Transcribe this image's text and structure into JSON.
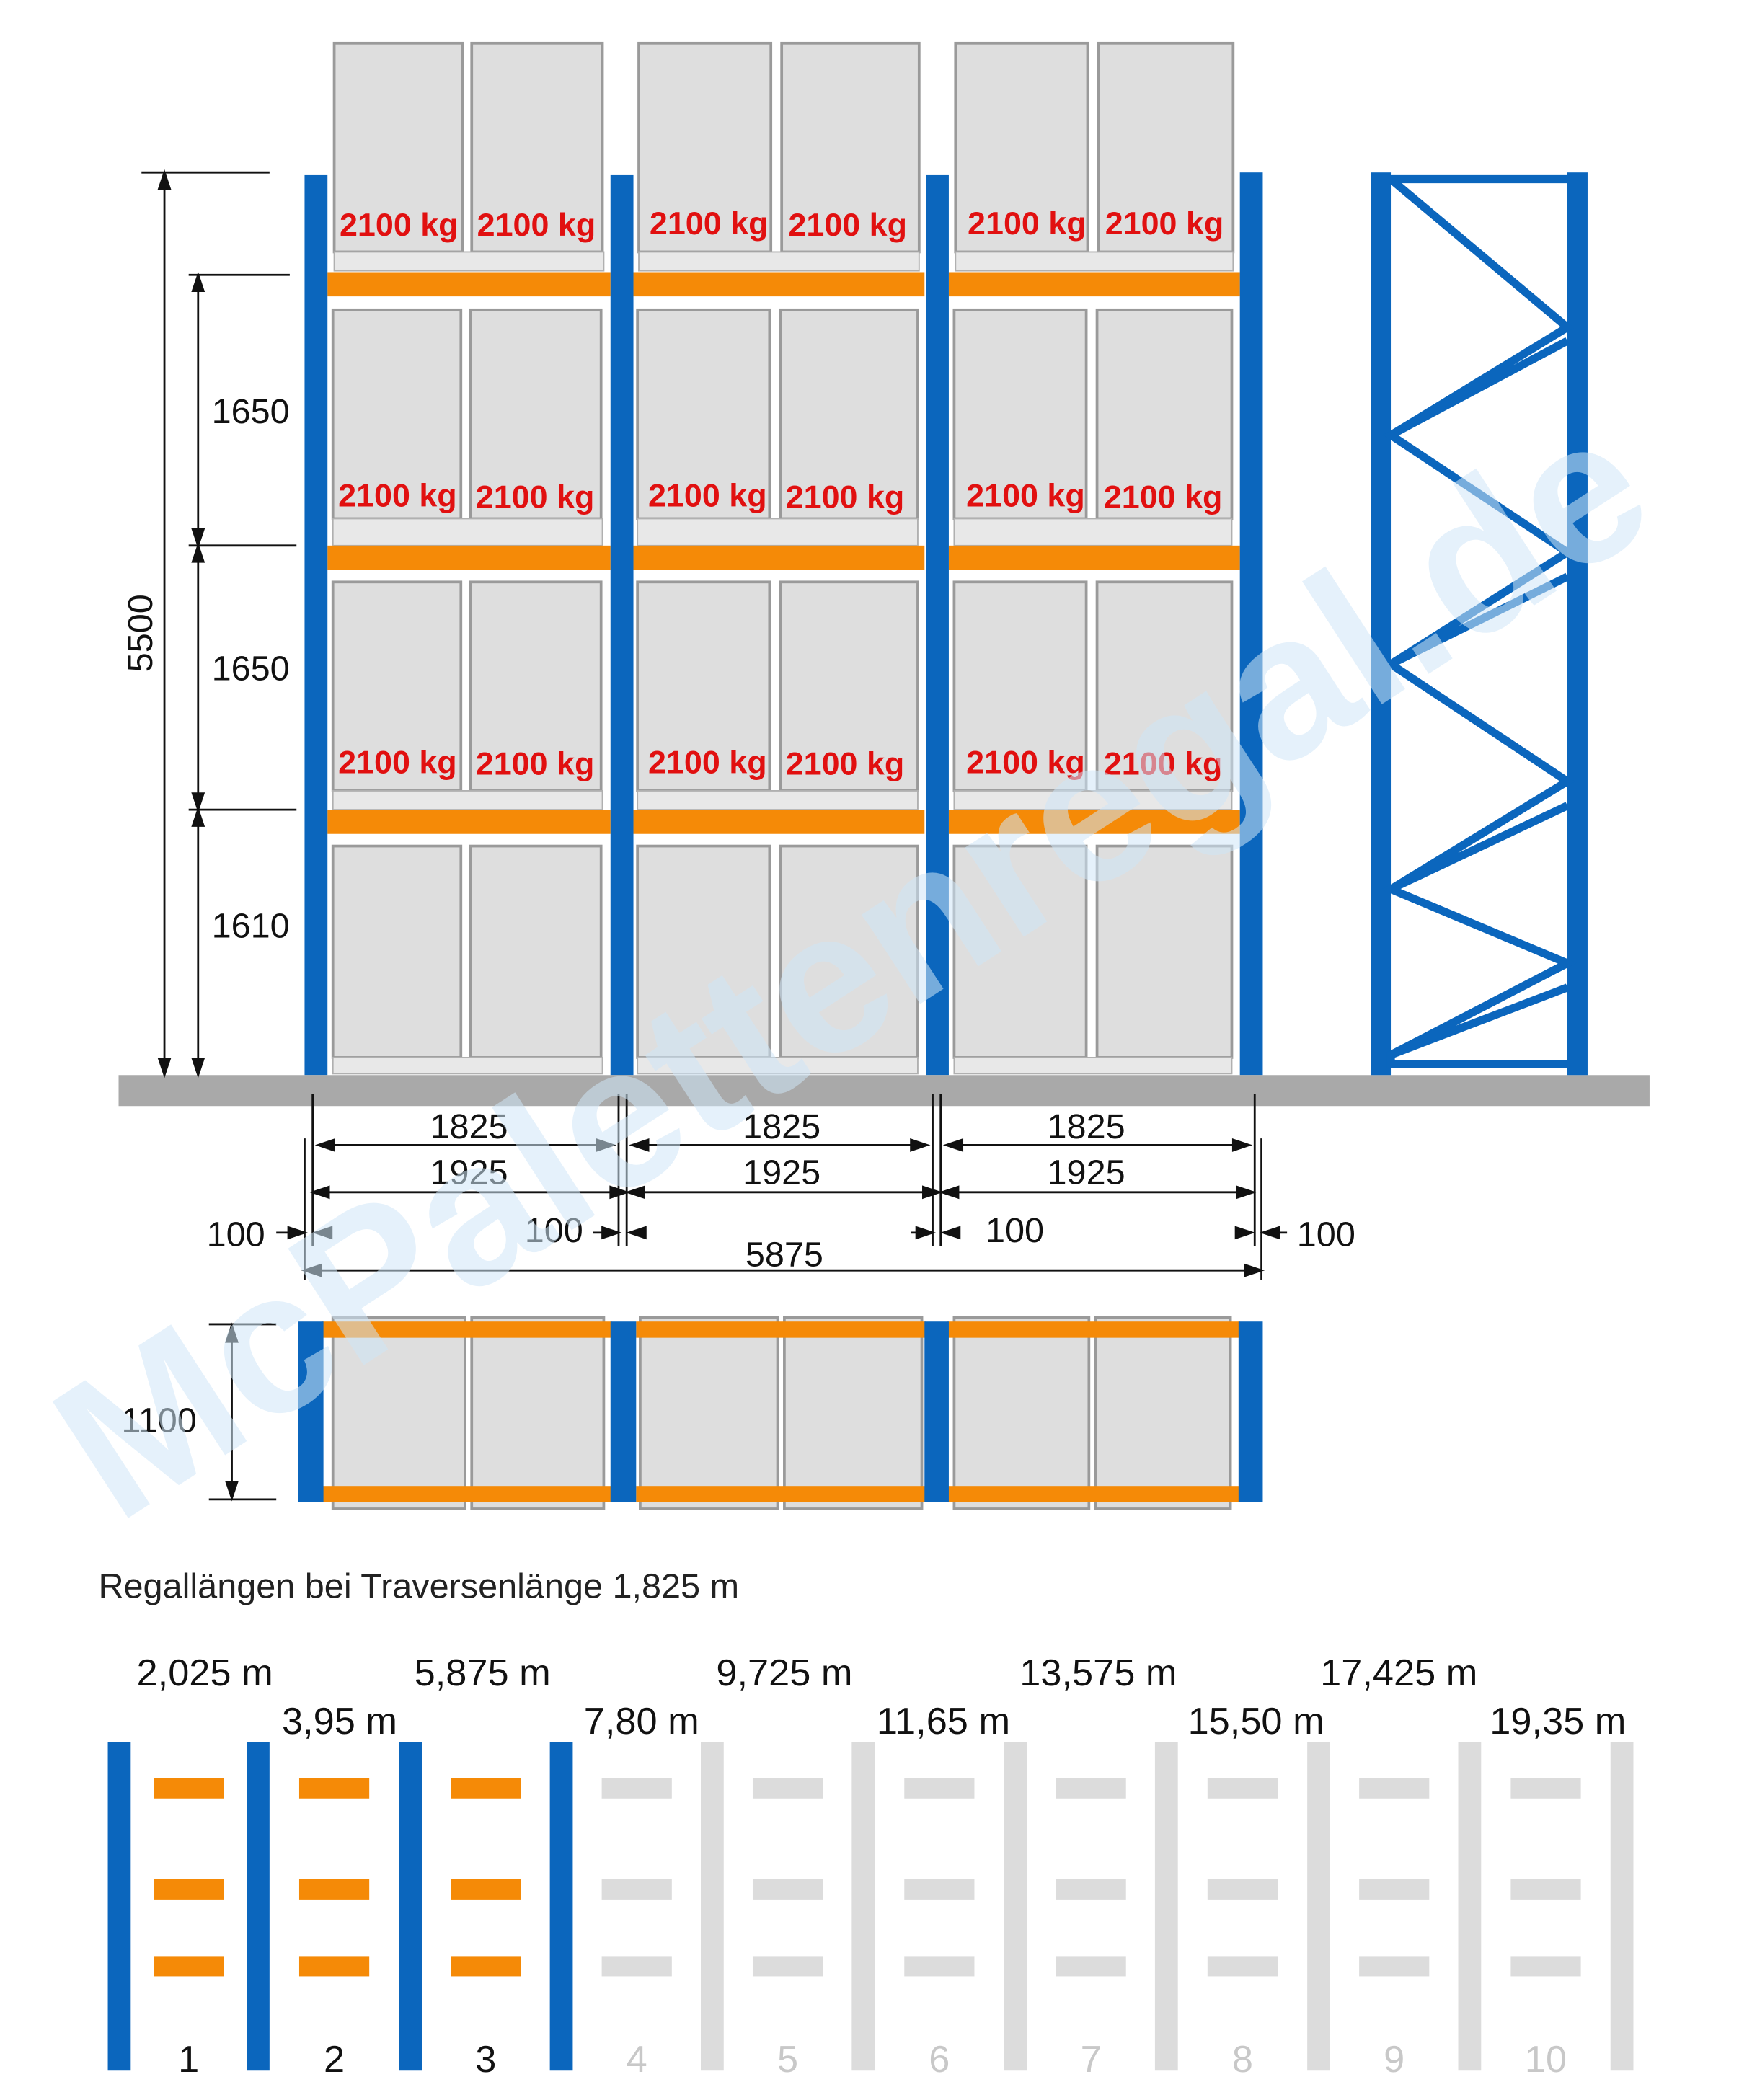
{
  "front_view": {
    "load_label": "2100 kg",
    "total_height": "5500",
    "level_heights": [
      "1650",
      "1650",
      "1610"
    ]
  },
  "horizontal_dims": {
    "inner_width": "1825",
    "beam_pitch": "1925",
    "upright_width": "100",
    "total_length": "5875"
  },
  "top_view": {
    "depth": "1100"
  },
  "lengths_section": {
    "caption": "Regallängen bei Traversenlänge 1,825 m",
    "lengths_upper": [
      "2,025 m",
      "5,875 m",
      "9,725 m",
      "13,575 m",
      "17,425 m"
    ],
    "lengths_lower": [
      "3,95 m",
      "7,80 m",
      "11,65 m",
      "15,50 m",
      "19,35 m"
    ],
    "bay_numbers": [
      "1",
      "2",
      "3",
      "4",
      "5",
      "6",
      "7",
      "8",
      "9",
      "10"
    ],
    "active_bays": 3
  },
  "watermark": "McPalettenregal.de",
  "colors": {
    "upright_blue": "#0b66bd",
    "beam_orange": "#f58a07",
    "load_red": "#e11010",
    "floor_gray": "#a9a9a9",
    "pallet_gray": "#dedede",
    "inactive_gray": "#dcdcdc"
  }
}
